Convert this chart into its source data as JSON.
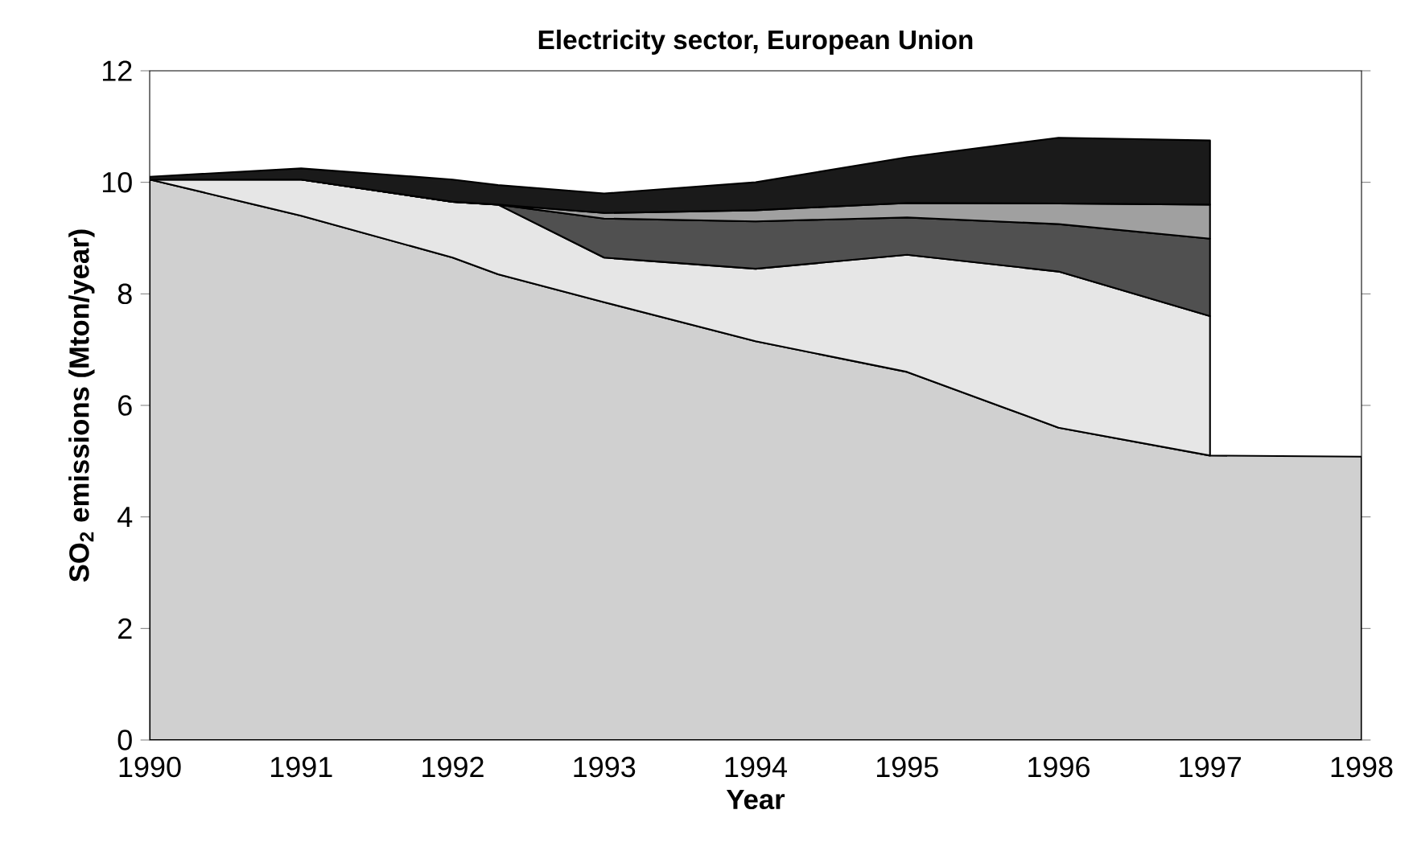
{
  "chart_data": {
    "type": "area",
    "title": "Electricity sector, European Union",
    "xlabel": "Year",
    "ylabel": "SO$_{2}$ emissions (Mton/year)",
    "stacked": true,
    "x": [
      1990,
      1991,
      1992,
      1992.3,
      1993,
      1994,
      1995,
      1996,
      1997,
      1998
    ],
    "series": [
      {
        "color": "#d0d0d0",
        "values": [
          10.05,
          9.4,
          8.65,
          8.35,
          7.85,
          7.15,
          6.6,
          5.6,
          5.1,
          5.08
        ]
      },
      {
        "color": "#e6e6e6",
        "values": [
          0,
          0.65,
          1.0,
          1.25,
          0.8,
          1.3,
          2.1,
          2.8,
          2.5,
          null
        ]
      },
      {
        "color": "#505050",
        "values": [
          0,
          0,
          0,
          0,
          0.7,
          0.85,
          0.67,
          0.85,
          1.39,
          null
        ]
      },
      {
        "color": "#a0a0a0",
        "values": [
          0,
          0,
          0,
          0,
          0.1,
          0.2,
          0.26,
          0.37,
          0.61,
          null
        ]
      },
      {
        "color": "#1a1a1a",
        "values": [
          0.05,
          0.2,
          0.4,
          0.35,
          0.35,
          0.5,
          0.82,
          1.18,
          1.15,
          null
        ]
      }
    ],
    "xlim": [
      1990,
      1998
    ],
    "ylim": [
      0,
      12
    ],
    "xticks": [
      1990,
      1991,
      1992,
      1993,
      1994,
      1995,
      1996,
      1997,
      1998
    ],
    "yticks": [
      0,
      2,
      4,
      6,
      8,
      10,
      12
    ]
  }
}
